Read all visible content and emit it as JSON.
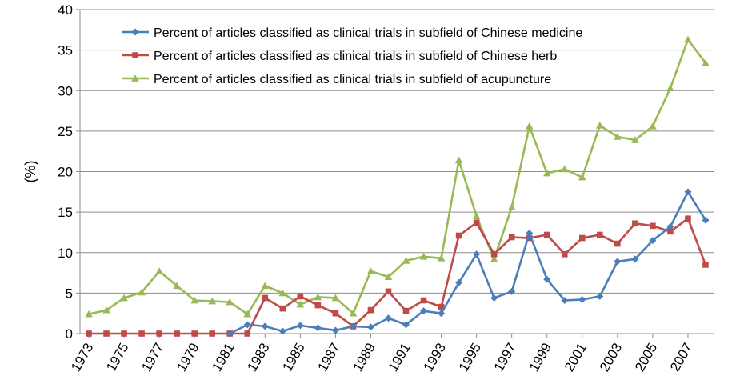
{
  "chart_data": {
    "type": "line",
    "title": "",
    "xlabel": "",
    "ylabel": "(%)",
    "ylim": [
      0,
      40
    ],
    "yticks": [
      0,
      5,
      10,
      15,
      20,
      25,
      30,
      35,
      40
    ],
    "grid": "horizontal",
    "legend_position": "top-right",
    "x": [
      1973,
      1974,
      1975,
      1976,
      1977,
      1978,
      1979,
      1980,
      1981,
      1982,
      1983,
      1984,
      1985,
      1986,
      1987,
      1988,
      1989,
      1990,
      1991,
      1992,
      1993,
      1994,
      1995,
      1996,
      1997,
      1998,
      1999,
      2000,
      2001,
      2002,
      2003,
      2004,
      2005,
      2006,
      2007,
      2008
    ],
    "xtick_labels": [
      "1973",
      "1975",
      "1977",
      "1979",
      "1981",
      "1983",
      "1985",
      "1987",
      "1989",
      "1991",
      "1993",
      "1995",
      "1997",
      "1999",
      "2001",
      "2003",
      "2005",
      "2007"
    ],
    "series": [
      {
        "name": "Percent of articles classified as clinical trials in subfield of Chinese medicine",
        "color": "#4a7ebb",
        "marker": "diamond",
        "values": [
          null,
          null,
          null,
          null,
          null,
          null,
          null,
          null,
          0,
          1.1,
          0.9,
          0.3,
          1.0,
          0.7,
          0.4,
          0.9,
          0.8,
          1.9,
          1.1,
          2.8,
          2.5,
          6.3,
          9.8,
          4.4,
          5.2,
          12.4,
          6.7,
          4.1,
          4.2,
          4.6,
          8.9,
          9.2,
          11.5,
          13.2,
          17.5,
          14.0
        ]
      },
      {
        "name": "Percent of articles classified as clinical trials in subfield of Chinese herb",
        "color": "#be4b48",
        "marker": "square",
        "values": [
          0,
          0,
          0,
          0,
          0,
          0,
          0,
          0,
          0,
          0,
          4.4,
          3.1,
          4.6,
          3.5,
          2.5,
          0.9,
          2.9,
          5.2,
          2.8,
          4.1,
          3.3,
          12.1,
          13.7,
          9.8,
          11.9,
          11.8,
          12.2,
          9.8,
          11.8,
          12.2,
          11.1,
          13.6,
          13.3,
          12.6,
          14.2,
          8.5
        ]
      },
      {
        "name": "Percent of articles classified as clinical trials in subfield of acupuncture",
        "color": "#98b954",
        "marker": "triangle",
        "values": [
          2.4,
          2.9,
          4.4,
          5.1,
          7.7,
          5.9,
          4.1,
          4.0,
          3.9,
          2.4,
          5.9,
          5.0,
          3.6,
          4.5,
          4.4,
          2.5,
          7.7,
          7.0,
          9.0,
          9.5,
          9.3,
          21.4,
          14.5,
          9.2,
          15.6,
          25.6,
          19.8,
          20.3,
          19.3,
          25.7,
          24.3,
          23.9,
          25.6,
          30.3,
          36.3,
          33.4
        ]
      }
    ]
  }
}
